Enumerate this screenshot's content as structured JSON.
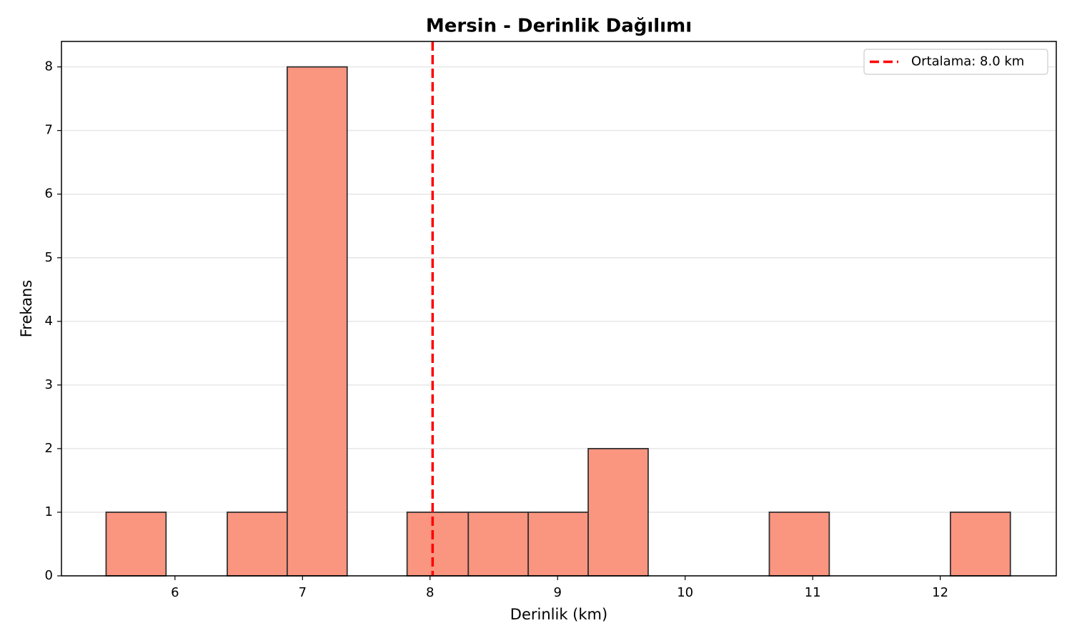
{
  "chart_data": {
    "type": "histogram",
    "title": "Mersin - Derinlik Dağılımı",
    "x_label": "Derinlik (km)",
    "y_label": "Frekans",
    "bins": [
      5.46,
      5.93,
      6.41,
      6.88,
      7.35,
      7.82,
      8.3,
      8.77,
      9.24,
      9.71,
      10.19,
      10.66,
      11.13,
      11.6,
      12.08,
      12.55
    ],
    "values": [
      1,
      0,
      1,
      8,
      0,
      1,
      1,
      1,
      2,
      0,
      0,
      1,
      0,
      0,
      1
    ],
    "color": "#fa9580",
    "edge_color": "#333333",
    "xlim": [
      5.11,
      12.91
    ],
    "xticks": [
      6,
      7,
      8,
      9,
      10,
      11,
      12
    ],
    "ylim": [
      0,
      8.4
    ],
    "yticks": [
      0,
      1,
      2,
      3,
      4,
      5,
      6,
      7,
      8
    ],
    "grid": "y",
    "mean_line": {
      "value": 8.02,
      "label": "Ortalama: 8.0 km",
      "color": "#ff0000"
    },
    "legend": "upper right"
  }
}
